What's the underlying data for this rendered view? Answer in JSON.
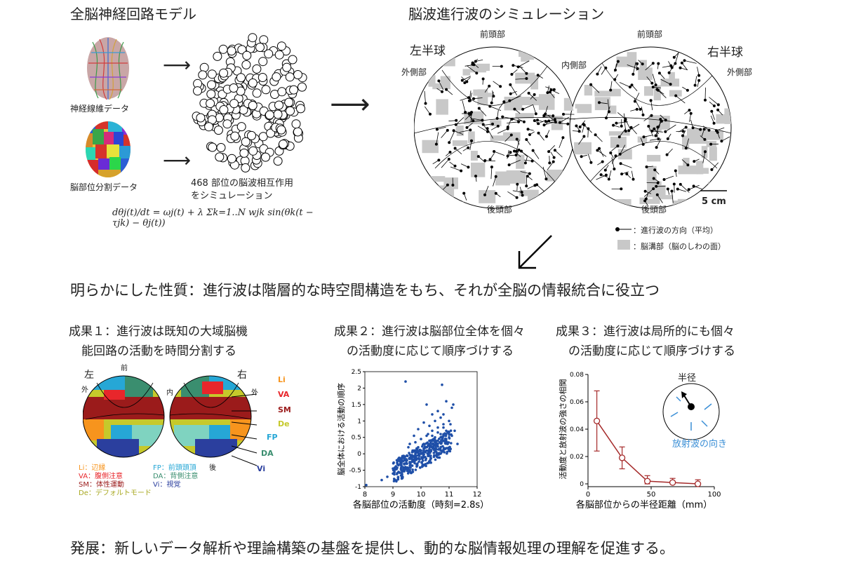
{
  "model": {
    "title": "全脳神経回路モデル",
    "fiber_label": "神経線維データ",
    "parcel_label": "脳部位分割データ",
    "sim_label_1": "468 部位の脳波相互作用",
    "sim_label_2": "をシミュレーション",
    "equation": "dθj(t)/dt = ωj(t) + λ Σk=1..N wjk sin(θk(t − τjk) − θj(t))"
  },
  "simulation": {
    "title": "脳波進行波のシミュレーション",
    "left_hemi": "左半球",
    "right_hemi": "右半球",
    "frontal_l": "前頭部",
    "frontal_r": "前頭部",
    "lateral_l": "外側部",
    "lateral_r": "外側部",
    "medial": "内側部",
    "occipital_l": "後頭部",
    "occipital_r": "後頭部",
    "scale": "5 cm",
    "legend_direction": "：進行波の方向（平均）",
    "legend_sulcus": "：脳溝部（脳のしわの面）"
  },
  "property": "明らかにした性質：進行波は階層的な時空間構造をもち、それが全脳の情報統合に役立つ",
  "result1": {
    "title_1": "成果１：進行波は既知の大域脳機",
    "title_2": "能回路の活動を時間分割する",
    "left": "左",
    "right": "右",
    "front": "前",
    "outer_l": "外",
    "inner": "内",
    "outer_r": "外",
    "back": "後",
    "networks": [
      {
        "code": "Li",
        "label": "Li：辺縁",
        "color": "#f7941d"
      },
      {
        "code": "VA",
        "label": "VA：腹側注意",
        "color": "#e8262b"
      },
      {
        "code": "SM",
        "label": "SM：体性運動",
        "color": "#9b1b1b"
      },
      {
        "code": "De",
        "label": "De：デフォルトモード",
        "color": "#c6c92b"
      },
      {
        "code": "FP",
        "label": "FP：前頭頭頂",
        "color": "#26a7d6"
      },
      {
        "code": "DA",
        "label": "DA：背側注意",
        "color": "#3a8e6f"
      },
      {
        "code": "Vi",
        "label": "Vi：視覚",
        "color": "#2b3f9e"
      }
    ]
  },
  "result2": {
    "title_1": "成果２：進行波は脳部位全体を個々",
    "title_2": "の活動度に応じて順序づけする"
  },
  "result3": {
    "title_1": "成果３：進行波は局所的にも個々",
    "title_2": "の活動度に応じて順序づけする",
    "inset_radius": "半径",
    "inset_dir": "放射波の向き"
  },
  "chart_data": [
    {
      "type": "scatter",
      "title": "",
      "xlabel": "各脳部位の活動度（時刻=2.8s）",
      "ylabel": "脳全体における活動の順序",
      "xlim": [
        8,
        12
      ],
      "ylim": [
        -1,
        2.5
      ],
      "xticks": [
        "8",
        "9",
        "10",
        "11",
        "12"
      ],
      "yticks": [
        "-1",
        "-0.5",
        "0",
        "0.5",
        "1",
        "1.5",
        "2",
        "2.5"
      ],
      "points_note": "approx. 468 points",
      "x": [
        8.05,
        8.6,
        8.8,
        9.0,
        9.2,
        9.3,
        9.45,
        9.5,
        9.6,
        9.7,
        9.8,
        9.9,
        10.0,
        10.1,
        10.2,
        10.3,
        10.4,
        10.5,
        10.6,
        10.7,
        10.8,
        10.9,
        11.0,
        11.1,
        11.2,
        9.0,
        9.2,
        9.4,
        9.5,
        9.6,
        9.7,
        9.8,
        9.9,
        10.0,
        10.1,
        10.2,
        10.3,
        10.4,
        10.5,
        10.6,
        10.7,
        10.8,
        10.9,
        11.0,
        9.3,
        9.5,
        9.7,
        9.9,
        10.1,
        10.3,
        10.5,
        10.7,
        10.9,
        10.8,
        10.6,
        10.4,
        9.6,
        9.8,
        10.0,
        10.2,
        10.4,
        10.6,
        10.8,
        11.0,
        10.3,
        10.5,
        10.7,
        9.45,
        10.75,
        11.1,
        10.9,
        10.2,
        10.4,
        9.9,
        10.1,
        10.6,
        10.8,
        11.05,
        9.75,
        9.55,
        10.35,
        10.15,
        10.55,
        10.65,
        10.95,
        11.15,
        11.3,
        10.25,
        10.45
      ],
      "y": [
        -0.95,
        -0.8,
        -0.7,
        -0.6,
        -0.55,
        -0.5,
        -0.4,
        -0.3,
        -0.25,
        -0.2,
        -0.1,
        -0.05,
        0.0,
        0.05,
        0.1,
        0.15,
        0.2,
        0.25,
        0.3,
        0.35,
        0.4,
        0.45,
        0.5,
        0.55,
        0.7,
        -0.45,
        -0.35,
        -0.3,
        -0.2,
        -0.15,
        -0.1,
        0.0,
        0.05,
        0.1,
        0.15,
        0.2,
        0.25,
        0.3,
        0.35,
        0.4,
        0.5,
        0.55,
        0.6,
        0.65,
        -0.2,
        -0.05,
        0.1,
        0.2,
        0.3,
        0.4,
        0.5,
        0.6,
        0.7,
        0.8,
        0.65,
        0.55,
        0.3,
        0.35,
        0.45,
        0.55,
        0.7,
        0.8,
        0.9,
        1.0,
        0.85,
        1.0,
        1.1,
        2.2,
        2.1,
        1.4,
        1.6,
        1.5,
        1.2,
        0.75,
        0.95,
        1.3,
        1.2,
        0.9,
        0.55,
        0.2,
        0.25,
        -0.1,
        0.05,
        0.15,
        0.3,
        1.5,
        0.3,
        0.6,
        0.45
      ]
    },
    {
      "type": "line",
      "title": "",
      "xlabel": "各脳部位からの半径距離（mm）",
      "ylabel": "活動度と放射波の強さの相関",
      "xlim": [
        0,
        100
      ],
      "ylim": [
        0,
        0.08
      ],
      "xticks": [
        "0",
        "50",
        "100"
      ],
      "yticks": [
        "0",
        "0.02",
        "0.04",
        "0.06",
        "0.08"
      ],
      "x": [
        7,
        27,
        47,
        67,
        87
      ],
      "y": [
        0.046,
        0.019,
        0.002,
        0.001,
        0.0
      ],
      "err": [
        0.022,
        0.008,
        0.004,
        0.003,
        0.003
      ],
      "color": "#a52a2a"
    }
  ],
  "outcome": "発展：新しいデータ解析や理論構築の基盤を提供し、動的な脳情報処理の理解を促進する。"
}
